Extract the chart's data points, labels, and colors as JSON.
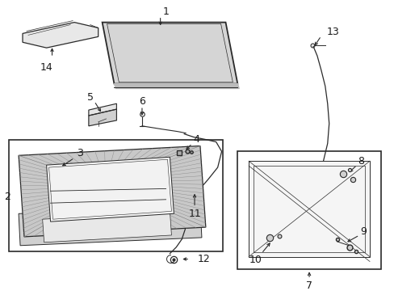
{
  "background_color": "#ffffff",
  "line_color": "#2a2a2a",
  "text_color": "#1a1a1a",
  "font_size": 8.5,
  "arrow_color": "#2a2a2a"
}
